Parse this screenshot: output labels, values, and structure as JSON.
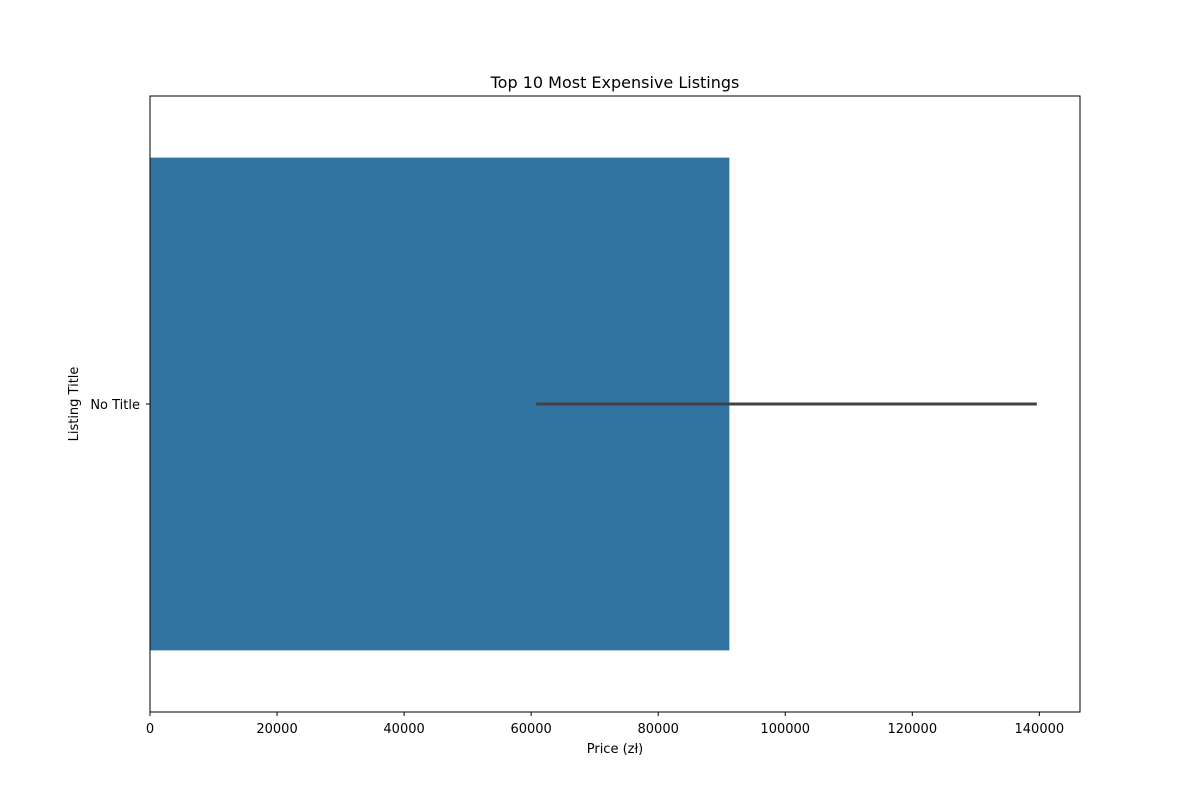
{
  "chart_data": {
    "type": "bar",
    "orientation": "horizontal",
    "title": "Top 10 Most Expensive Listings",
    "xlabel": "Price (zł)",
    "ylabel": "Listing Title",
    "categories": [
      "No Title"
    ],
    "values": [
      91200
    ],
    "error_bars": [
      [
        60800,
        139600
      ]
    ],
    "xlim": [
      0,
      146400
    ],
    "xticks": [
      0,
      20000,
      40000,
      60000,
      80000,
      100000,
      120000,
      140000
    ],
    "grid": false,
    "legend": "none",
    "colors": {
      "bar": "#3274a1",
      "error_bar": "#424242"
    }
  }
}
